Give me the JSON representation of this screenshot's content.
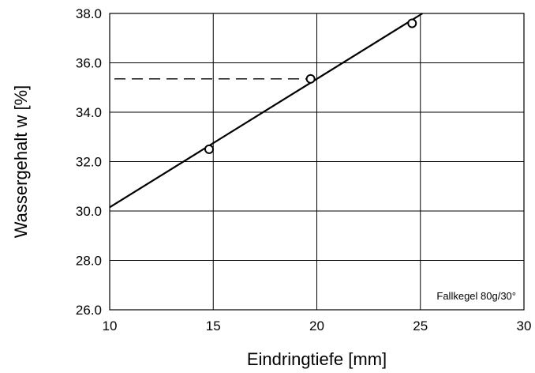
{
  "chart_data": {
    "type": "scatter",
    "xlabel": "Eindringtiefe [mm]",
    "ylabel": "Wassergehalt w [%]",
    "xlim": [
      10,
      30
    ],
    "ylim": [
      26.0,
      38.0
    ],
    "x_ticks": [
      "10",
      "15",
      "20",
      "25",
      "30"
    ],
    "y_ticks": [
      "26.0",
      "28.0",
      "30.0",
      "32.0",
      "34.0",
      "36.0",
      "38.0"
    ],
    "grid": true,
    "series": [
      {
        "marker": "open-circle",
        "points": [
          {
            "x": 14.8,
            "y": 32.5
          },
          {
            "x": 19.7,
            "y": 35.35
          },
          {
            "x": 24.6,
            "y": 37.6
          }
        ]
      }
    ],
    "regression_line": {
      "x": [
        10,
        25.1
      ],
      "y": [
        30.15,
        38.0
      ]
    },
    "reference_line": {
      "x": [
        10,
        20
      ],
      "y": [
        35.35,
        35.35
      ],
      "style": "dashed"
    },
    "annotation": "Fallkegel 80g/30°",
    "colors": {
      "line": "#000000",
      "grid": "#000000",
      "background": "#ffffff"
    }
  }
}
